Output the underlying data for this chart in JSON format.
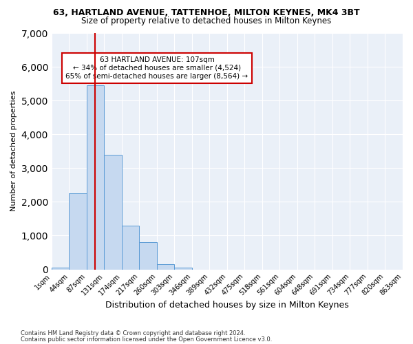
{
  "title1": "63, HARTLAND AVENUE, TATTENHOE, MILTON KEYNES, MK4 3BT",
  "title2": "Size of property relative to detached houses in Milton Keynes",
  "xlabel": "Distribution of detached houses by size in Milton Keynes",
  "ylabel": "Number of detached properties",
  "bin_labels": [
    "1sqm",
    "44sqm",
    "87sqm",
    "131sqm",
    "174sqm",
    "217sqm",
    "260sqm",
    "303sqm",
    "346sqm",
    "389sqm",
    "432sqm",
    "475sqm",
    "518sqm",
    "561sqm",
    "604sqm",
    "648sqm",
    "691sqm",
    "734sqm",
    "777sqm",
    "820sqm",
    "863sqm"
  ],
  "bar_values": [
    50,
    2250,
    5450,
    3400,
    1300,
    800,
    150,
    60,
    0,
    0,
    0,
    0,
    0,
    0,
    0,
    0,
    0,
    0,
    0,
    0
  ],
  "bar_color": "#c6d9f0",
  "bar_edge_color": "#5b9bd5",
  "vline_color": "#cc0000",
  "annotation_text": "63 HARTLAND AVENUE: 107sqm\n← 34% of detached houses are smaller (4,524)\n65% of semi-detached houses are larger (8,564) →",
  "annotation_box_color": "#ffffff",
  "annotation_box_edge": "#cc0000",
  "ylim": [
    0,
    7000
  ],
  "yticks": [
    0,
    1000,
    2000,
    3000,
    4000,
    5000,
    6000,
    7000
  ],
  "footer1": "Contains HM Land Registry data © Crown copyright and database right 2024.",
  "footer2": "Contains public sector information licensed under the Open Government Licence v3.0.",
  "plot_bg_color": "#eaf0f8"
}
